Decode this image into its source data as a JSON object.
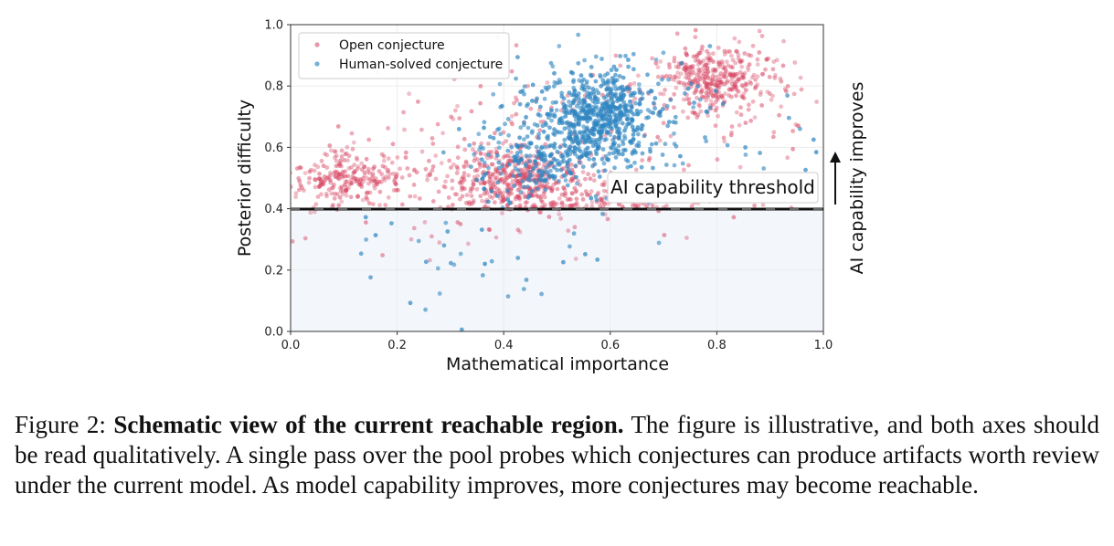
{
  "chart_data": {
    "type": "scatter",
    "xlabel": "Mathematical importance",
    "ylabel": "Posterior difficulty",
    "xlim": [
      0.0,
      1.0
    ],
    "ylim": [
      0.0,
      1.0
    ],
    "x_ticks": [
      "0.0",
      "0.2",
      "0.4",
      "0.6",
      "0.8",
      "1.0"
    ],
    "y_ticks": [
      "0.0",
      "0.2",
      "0.4",
      "0.6",
      "0.8",
      "1.0"
    ],
    "grid": true,
    "legend_position": "top-left",
    "threshold": {
      "y": 0.4,
      "label": "AI capability threshold"
    },
    "side_annotation": "AI capability improves",
    "series": [
      {
        "name": "Open conjecture",
        "color": "#d6415f",
        "clusters": [
          {
            "cx": 0.1,
            "cy": 0.5,
            "sx": 0.06,
            "sy": 0.045,
            "count": 260
          },
          {
            "cx": 0.42,
            "cy": 0.5,
            "sx": 0.07,
            "sy": 0.05,
            "count": 420
          },
          {
            "cx": 0.8,
            "cy": 0.82,
            "sx": 0.06,
            "sy": 0.06,
            "count": 380
          },
          {
            "cx": 0.55,
            "cy": 0.42,
            "sx": 0.12,
            "sy": 0.03,
            "count": 160
          },
          {
            "cx": 0.35,
            "cy": 0.36,
            "sx": 0.15,
            "sy": 0.06,
            "count": 70
          },
          {
            "cx": 0.5,
            "cy": 0.65,
            "sx": 0.2,
            "sy": 0.12,
            "count": 160
          }
        ]
      },
      {
        "name": "Human-solved conjecture",
        "color": "#2e86c1",
        "clusters": [
          {
            "cx": 0.57,
            "cy": 0.7,
            "sx": 0.06,
            "sy": 0.08,
            "count": 620
          },
          {
            "cx": 0.45,
            "cy": 0.55,
            "sx": 0.05,
            "sy": 0.06,
            "count": 150
          },
          {
            "cx": 0.35,
            "cy": 0.25,
            "sx": 0.12,
            "sy": 0.08,
            "count": 90
          },
          {
            "cx": 0.62,
            "cy": 0.6,
            "sx": 0.15,
            "sy": 0.12,
            "count": 160
          }
        ]
      }
    ]
  },
  "caption": {
    "label": "Figure 2:",
    "title": "Schematic view of the current reachable region.",
    "body": "The figure is illustrative, and both axes should be read qualitatively. A single pass over the pool probes which conjectures can produce artifacts worth review under the current model. As model capability improves, more conjectures may become reachable."
  }
}
